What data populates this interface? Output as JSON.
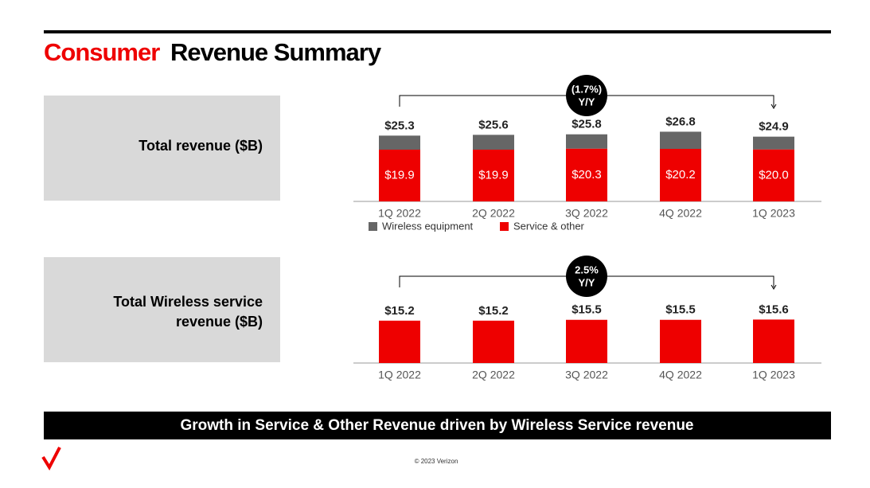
{
  "header": {
    "title_accent": "Consumer",
    "title": "Revenue Summary"
  },
  "panels": [
    {
      "label": [
        "Total revenue ($B)"
      ]
    },
    {
      "label": [
        "Total Wireless service",
        "revenue ($B)"
      ]
    }
  ],
  "banner": "Growth in Service & Other Revenue driven by Wireless Service revenue",
  "footer": "© 2023 Verizon",
  "chart_data": [
    {
      "type": "bar",
      "stacked": true,
      "categories": [
        "1Q 2022",
        "2Q 2022",
        "3Q 2022",
        "4Q 2022",
        "1Q 2023"
      ],
      "series": [
        {
          "name": "Service & other",
          "color": "#ee0000",
          "values": [
            19.9,
            19.9,
            20.3,
            20.2,
            20.0
          ],
          "value_labels": [
            "$19.9",
            "$19.9",
            "$20.3",
            "$20.2",
            "$20.0"
          ]
        },
        {
          "name": "Wireless equipment",
          "color": "#666666",
          "values": [
            5.4,
            5.7,
            5.5,
            6.6,
            4.9
          ]
        }
      ],
      "totals": [
        25.3,
        25.6,
        25.8,
        26.8,
        24.9
      ],
      "total_labels": [
        "$25.3",
        "$25.6",
        "$25.8",
        "$26.8",
        "$24.9"
      ],
      "ylim": [
        0,
        30
      ],
      "annotation": {
        "text": "(1.7%)",
        "sub": "Y/Y"
      }
    },
    {
      "type": "bar",
      "categories": [
        "1Q 2022",
        "2Q 2022",
        "3Q 2022",
        "4Q 2022",
        "1Q 2023"
      ],
      "series": [
        {
          "color": "#ee0000",
          "values": [
            15.2,
            15.2,
            15.5,
            15.5,
            15.6
          ],
          "value_labels": [
            "$15.2",
            "$15.2",
            "$15.5",
            "$15.5",
            "$15.6"
          ]
        }
      ],
      "ylim": [
        0,
        28
      ],
      "annotation": {
        "text": "2.5%",
        "sub": "Y/Y"
      }
    }
  ]
}
